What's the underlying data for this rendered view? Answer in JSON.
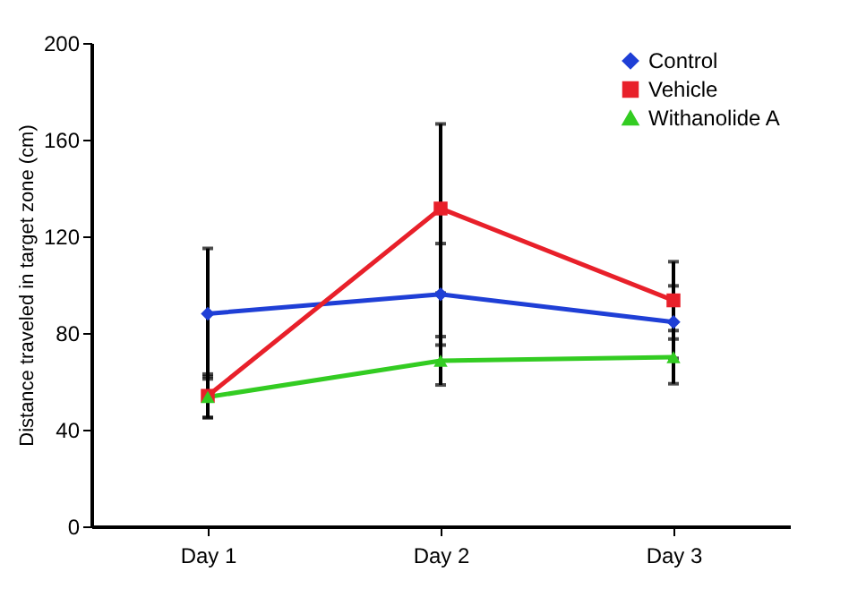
{
  "chart_data": {
    "type": "line",
    "ylabel": "Distance traveled in target zone (cm)",
    "categories": [
      "Day 1",
      "Day 2",
      "Day 3"
    ],
    "ylim": [
      0,
      200
    ],
    "yticks": [
      0,
      40,
      80,
      120,
      160,
      200
    ],
    "grid": false,
    "legend": "top right",
    "series": [
      {
        "name": "Control",
        "color": "#1f3fd6",
        "marker": "diamond",
        "values": [
          88,
          96,
          84.5
        ],
        "errors": [
          27,
          21,
          15
        ]
      },
      {
        "name": "Vehicle",
        "color": "#e8202a",
        "marker": "square",
        "values": [
          54,
          131.5,
          93.5
        ],
        "errors": [
          9,
          35,
          16
        ]
      },
      {
        "name": "Withanolide A",
        "color": "#33cc22",
        "marker": "triangle",
        "values": [
          53.5,
          68.5,
          70
        ],
        "errors": [
          8.5,
          10,
          11
        ]
      }
    ]
  }
}
